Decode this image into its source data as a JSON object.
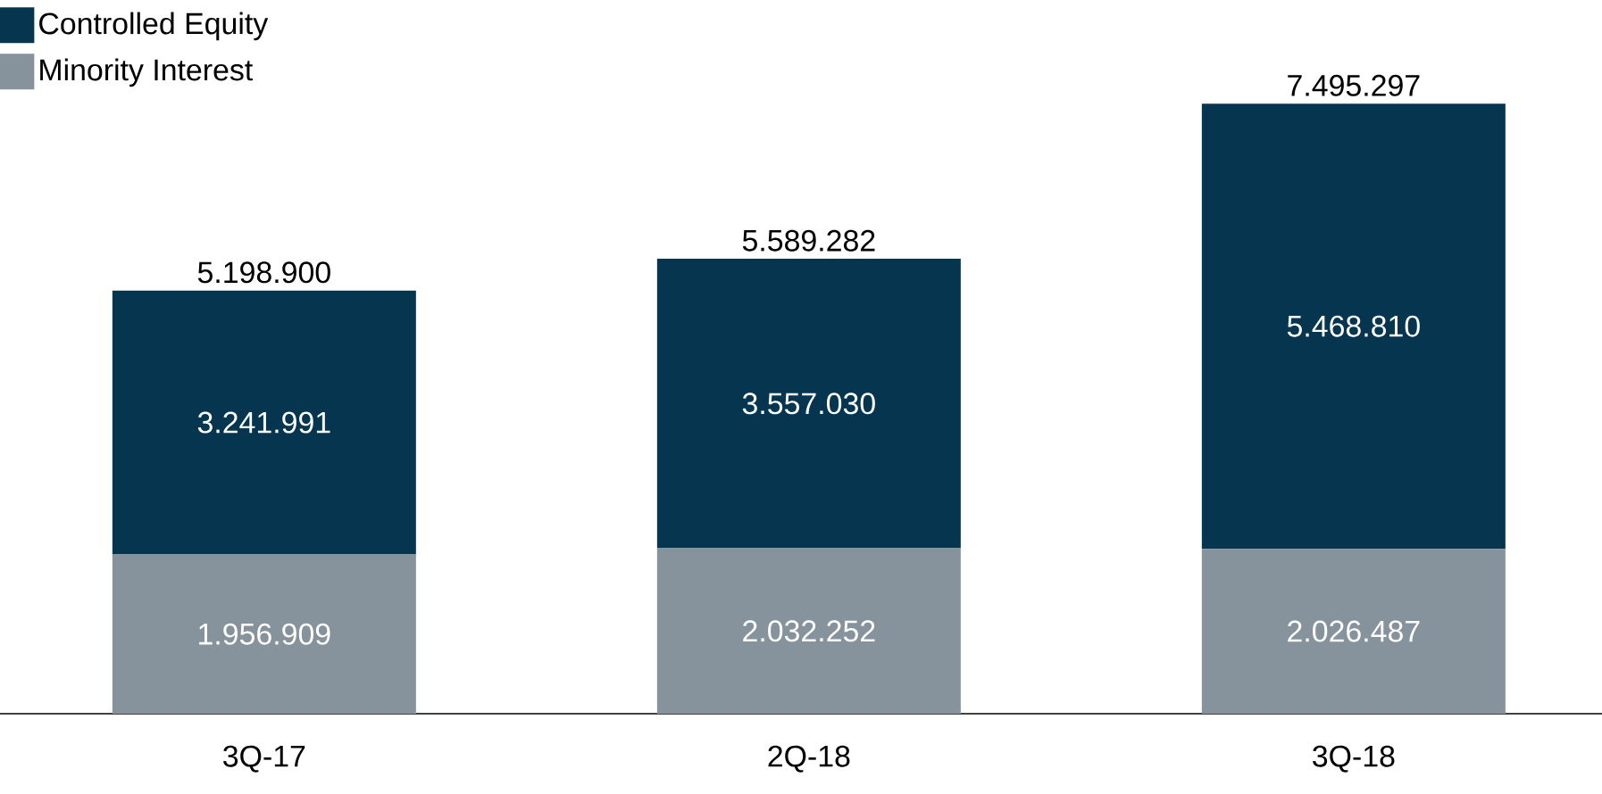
{
  "chart_data": {
    "type": "bar",
    "stacked": true,
    "categories": [
      "3Q-17",
      "2Q-18",
      "3Q-18"
    ],
    "series": [
      {
        "name": "Minority Interest",
        "color": "#87939c",
        "values": [
          1956909,
          2032252,
          2026487
        ],
        "value_labels": [
          "1.956.909",
          "2.032.252",
          "2.026.487"
        ]
      },
      {
        "name": "Controlled Equity",
        "color": "#06364f",
        "values": [
          3241991,
          3557030,
          5468810
        ],
        "value_labels": [
          "3.241.991",
          "3.557.030",
          "5.468.810"
        ]
      }
    ],
    "totals": [
      "5.198.900",
      "5.589.282",
      "7.495.297"
    ],
    "legend": "top left"
  }
}
